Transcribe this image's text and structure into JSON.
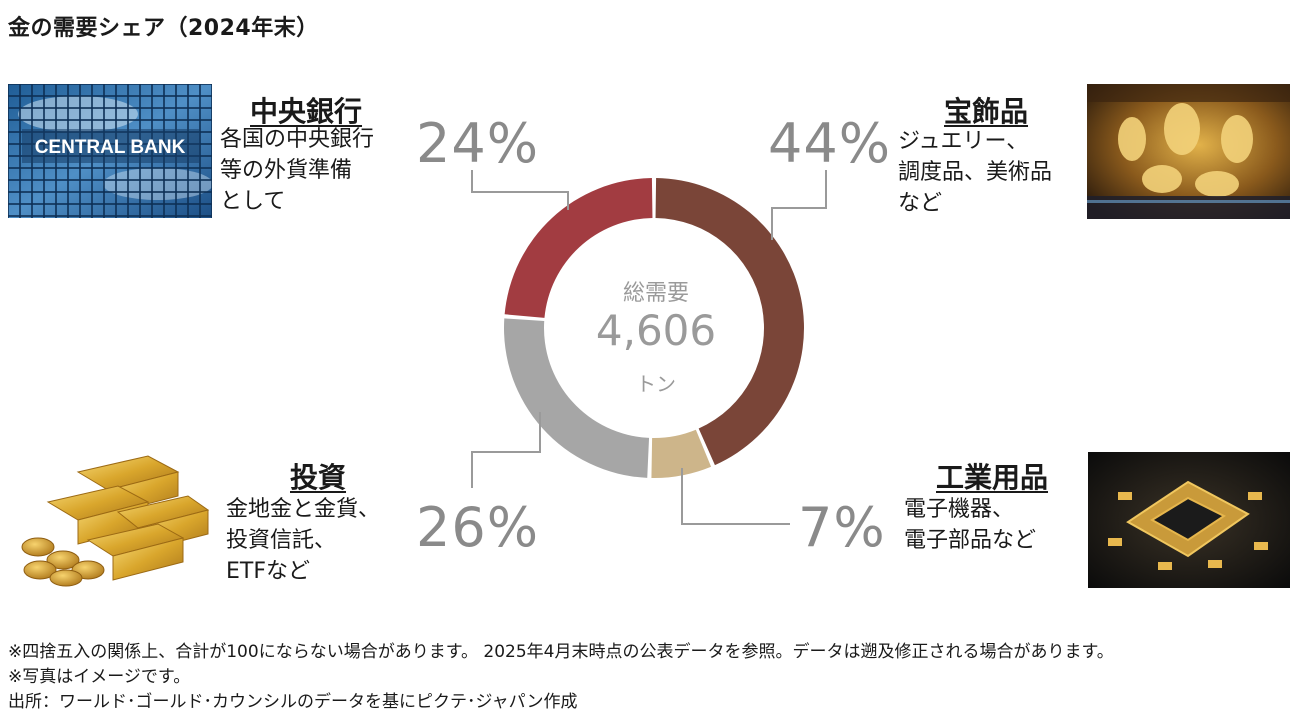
{
  "title": "金の需要シェア（2024年末）",
  "chart_data": {
    "type": "pie",
    "variant": "donut",
    "center_label": "総需要",
    "center_value": "4,606",
    "center_unit": "トン",
    "categories": [
      "宝飾品",
      "工業用品",
      "投資",
      "中央銀行"
    ],
    "values": [
      44,
      7,
      26,
      24
    ],
    "value_labels": [
      "44%",
      "7%",
      "26%",
      "24%"
    ],
    "colors": [
      "#7a4538",
      "#cdb58a",
      "#a6a6a6",
      "#a23c41"
    ]
  },
  "segments": {
    "central_bank": {
      "title": "中央銀行",
      "desc": [
        "各国の中央銀行",
        "等の外貨準備",
        "として"
      ],
      "pct": "24%",
      "photo_text": "CENTRAL BANK"
    },
    "jewelry": {
      "title": "宝飾品",
      "desc": [
        "ジュエリー、",
        "調度品、美術品",
        "など"
      ],
      "pct": "44%"
    },
    "investment": {
      "title": "投資",
      "desc": [
        "金地金と金貨、",
        "投資信託、",
        "ETFなど"
      ],
      "pct": "26%"
    },
    "industrial": {
      "title": "工業用品",
      "desc": [
        "電子機器、",
        "電子部品など"
      ],
      "pct": "7%"
    }
  },
  "notes": [
    "※四捨五入の関係上、合計が100にならない場合があります。 2025年4月末時点の公表データを参照。データは遡及修正される場合があります。",
    "※写真はイメージです。",
    "出所：ワールド･ゴールド･カウンシルのデータを基にピクテ･ジャパン作成"
  ]
}
